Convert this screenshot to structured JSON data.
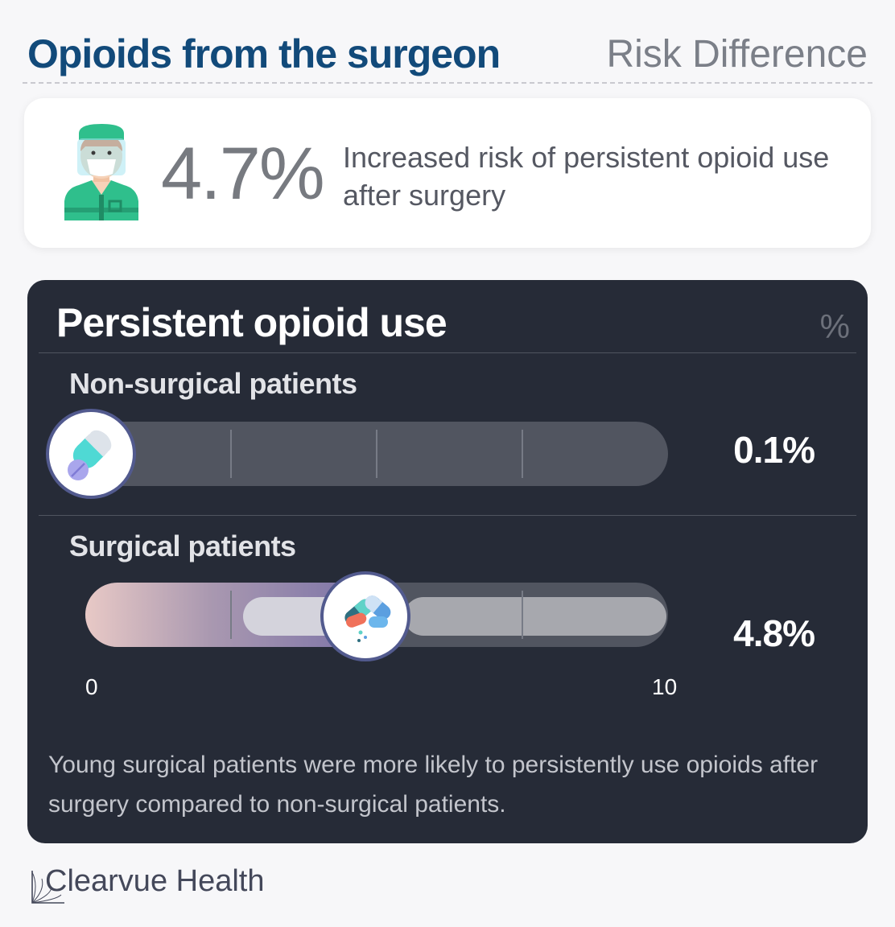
{
  "header": {
    "title": "Opioids from the surgeon",
    "subtitle": "Risk Difference"
  },
  "summary": {
    "icon": "surgeon-icon",
    "stat": "4.7%",
    "text": "Increased risk of persistent opioid use after surgery"
  },
  "chart_data": {
    "type": "bar",
    "title": "Persistent opioid use",
    "unit": "%",
    "categories": [
      "Non-surgical patients",
      "Surgical patients"
    ],
    "values": [
      0.1,
      4.8
    ],
    "value_labels": [
      "0.1%",
      "4.8%"
    ],
    "xlim": [
      0,
      10
    ],
    "tick_labels": [
      "0",
      "10"
    ],
    "grid": true,
    "marker_icons": [
      "capsule-pill-icon",
      "mixed-pills-icon"
    ],
    "footnote": "Young surgical patients were more likely to persistently use opioids after surgery compared to non-surgical patients."
  },
  "colors": {
    "title": "#124a7a",
    "card_bg": "#262b37",
    "track": "#515560",
    "knob_border": "#525a8e"
  },
  "brand": {
    "name": "Clearvue Health",
    "icon": "clearvue-logo-icon"
  }
}
